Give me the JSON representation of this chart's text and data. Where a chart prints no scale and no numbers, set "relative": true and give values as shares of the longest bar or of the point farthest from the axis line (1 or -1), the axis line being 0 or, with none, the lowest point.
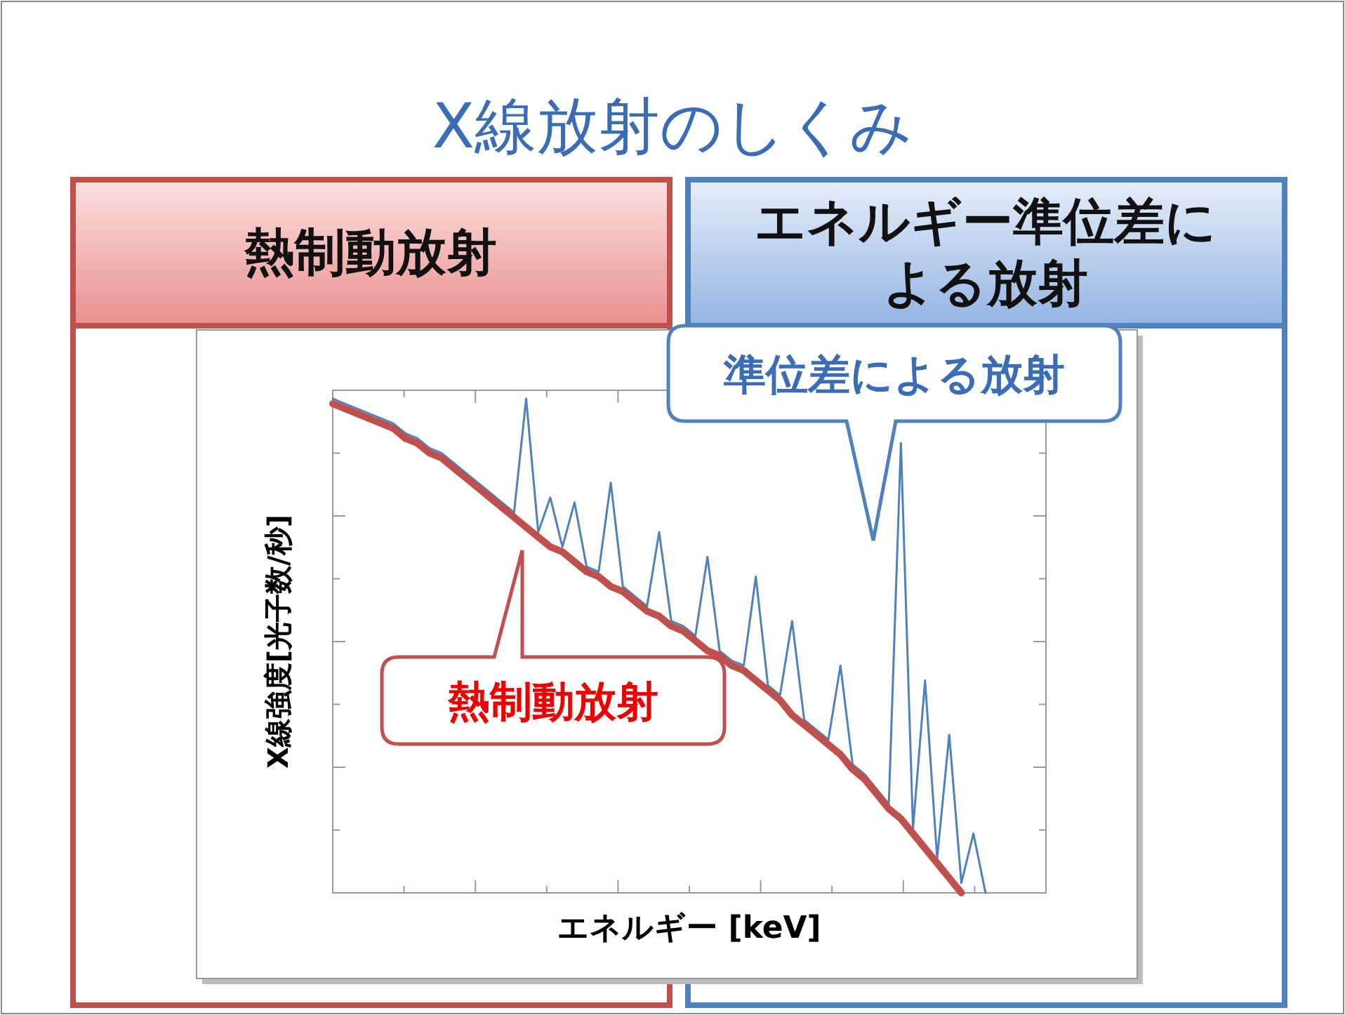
{
  "chart_data": {
    "type": "line",
    "title": "X線放射のしくみ",
    "xlabel": "エネルギー [keV]",
    "ylabel": "X線強度[光子数/秒]",
    "relative": true,
    "categories": [
      null,
      null,
      null,
      null,
      null,
      null,
      null,
      null,
      null,
      null,
      null,
      null,
      null,
      null,
      null,
      null,
      null,
      null,
      null,
      null,
      null,
      null,
      null,
      null,
      null,
      null,
      null,
      null,
      null,
      null,
      null,
      null,
      null,
      null,
      null,
      null,
      null,
      null,
      null,
      null,
      null,
      null,
      null,
      null,
      null,
      null,
      null,
      null,
      null,
      null,
      null,
      null,
      null,
      null,
      null,
      null,
      null,
      null,
      null,
      null
    ],
    "series": [
      {
        "color": "#4f81bd",
        "values": [
          1.0,
          0.99,
          0.98,
          0.97,
          0.96,
          0.95,
          0.93,
          0.92,
          0.9,
          0.89,
          0.87,
          0.85,
          0.83,
          0.81,
          0.79,
          0.77,
          1.0,
          0.73,
          0.8,
          0.7,
          0.79,
          0.66,
          0.65,
          0.83,
          0.62,
          0.6,
          0.58,
          0.73,
          0.55,
          0.54,
          0.52,
          0.68,
          0.49,
          0.47,
          0.46,
          0.64,
          0.42,
          0.4,
          0.55,
          0.35,
          0.33,
          0.31,
          0.46,
          0.26,
          0.24,
          0.21,
          0.18,
          0.91,
          0.13,
          0.43,
          0.07,
          0.32,
          0.02,
          0.12,
          0,
          null,
          null,
          null,
          null,
          null
        ]
      },
      {
        "color": "#c0504d",
        "values": [
          0.99,
          0.98,
          0.97,
          0.96,
          0.95,
          0.94,
          0.92,
          0.91,
          0.89,
          0.88,
          0.86,
          0.84,
          0.82,
          0.8,
          0.78,
          0.76,
          0.74,
          0.72,
          0.7,
          0.69,
          0.67,
          0.65,
          0.64,
          0.62,
          0.61,
          0.59,
          0.57,
          0.56,
          0.54,
          0.53,
          0.51,
          0.49,
          0.48,
          0.46,
          0.45,
          0.43,
          0.41,
          0.39,
          0.36,
          0.34,
          0.32,
          0.3,
          0.28,
          0.25,
          0.23,
          0.2,
          0.17,
          0.15,
          0.12,
          0.09,
          0.06,
          0.03,
          0,
          null,
          null,
          null,
          null,
          null,
          null,
          null
        ]
      }
    ],
    "annotations": [
      "熱制動放射",
      "準位差による放射",
      "熱制動放射",
      "エネルギー準位差による放射"
    ]
  }
}
